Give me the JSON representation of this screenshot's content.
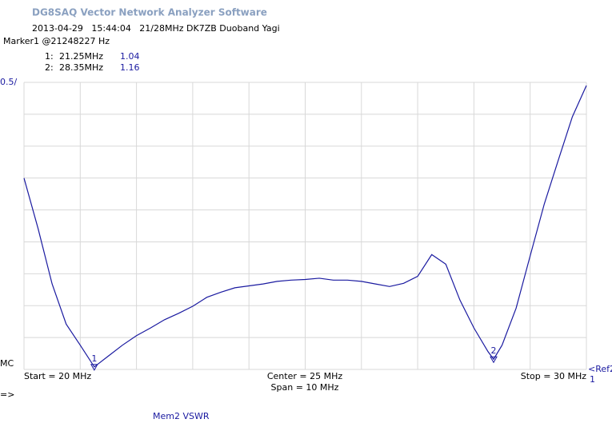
{
  "chart_data": {
    "type": "line",
    "title": "DG8SAQ Vector Network Analyzer Software",
    "subtitle": "2013-04-29   15:44:04   21/28MHz DK7ZB Duoband Yagi",
    "marker_header": "Marker1 @21248227 Hz",
    "markers": [
      {
        "label": "1",
        "name": "1:",
        "frequency": {
          "value": 21.25,
          "label": "21.25MHz"
        },
        "value": 1.04
      },
      {
        "label": "2",
        "name": "2:",
        "frequency": {
          "value": 28.35,
          "label": "28.35MHz"
        },
        "value": 1.16
      }
    ],
    "scale_label": "0.5/",
    "bottom_left_label": "MC",
    "ref_label": "<Ref2",
    "ref_value": "1",
    "start_label": "Start = 20 MHz",
    "center_label": "Center = 25 MHz",
    "span_label": "Span = 10 MHz",
    "stop_label": "Stop = 30 MHz",
    "prompt": "=>",
    "memory_label": "Mem2 VSWR",
    "x": [
      20,
      20.25,
      20.5,
      20.75,
      21,
      21.25,
      21.5,
      21.75,
      22,
      22.25,
      22.5,
      22.75,
      23,
      23.25,
      23.5,
      23.75,
      24,
      24.25,
      24.5,
      24.75,
      25,
      25.25,
      25.5,
      25.75,
      26,
      26.25,
      26.5,
      26.75,
      27,
      27.25,
      27.5,
      27.75,
      28,
      28.25,
      28.35,
      28.5,
      28.75,
      29,
      29.25,
      29.5,
      29.75,
      30
    ],
    "series": [
      {
        "color": "#1a1aa0",
        "values": [
          4.0,
          3.21,
          2.34,
          1.71,
          1.38,
          1.04,
          1.21,
          1.38,
          1.53,
          1.65,
          1.78,
          1.88,
          1.99,
          2.13,
          2.21,
          2.28,
          2.31,
          2.34,
          2.38,
          2.4,
          2.41,
          2.43,
          2.4,
          2.4,
          2.38,
          2.34,
          2.3,
          2.35,
          2.46,
          2.8,
          2.65,
          2.09,
          1.65,
          1.28,
          1.16,
          1.38,
          1.96,
          2.78,
          3.59,
          4.28,
          4.96,
          5.45
        ]
      }
    ],
    "xlim": [
      20,
      30
    ],
    "xticks": [
      20,
      21,
      22,
      23,
      24,
      25,
      26,
      27,
      28,
      29,
      30
    ],
    "ylim": [
      1,
      5.5
    ],
    "yticks": [
      1,
      1.5,
      2,
      2.5,
      3,
      3.5,
      4,
      4.5,
      5,
      5.5
    ],
    "grid": true
  }
}
